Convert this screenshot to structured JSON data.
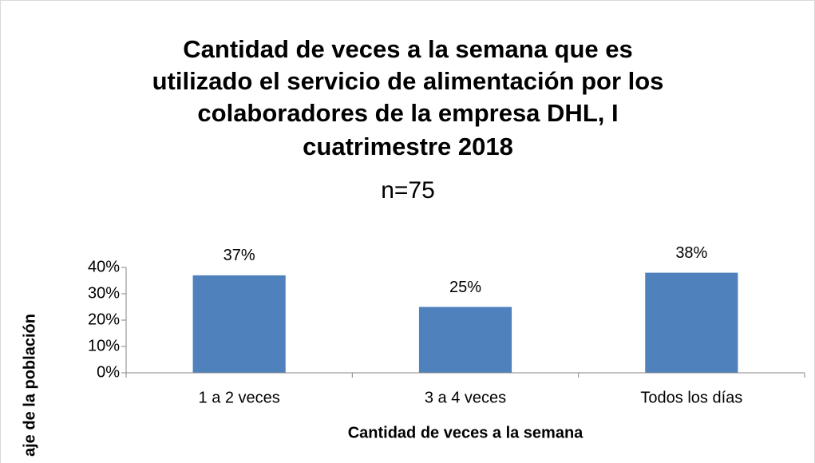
{
  "chart_data": {
    "type": "bar",
    "title": [
      "Cantidad de veces a la semana que es",
      "utilizado el servicio de alimentación por los",
      "colaboradores de la empresa DHL, I",
      "cuatrimestre 2018"
    ],
    "subtitle": "n=75",
    "x_label": "Cantidad de veces a la semana",
    "y_label": "aje de la población",
    "categories": [
      "1 a 2 veces",
      "3 a 4 veces",
      "Todos los días"
    ],
    "values": [
      37,
      25,
      38
    ],
    "value_labels": [
      "37%",
      "25%",
      "38%"
    ],
    "color": "#4f81bd",
    "ylim": [
      0,
      40
    ],
    "yticks": [
      {
        "value": 0,
        "label": "0%"
      },
      {
        "value": 10,
        "label": "10%"
      },
      {
        "value": 20,
        "label": "20%"
      },
      {
        "value": 30,
        "label": "30%"
      },
      {
        "value": 40,
        "label": "40%"
      }
    ],
    "grid": false
  }
}
